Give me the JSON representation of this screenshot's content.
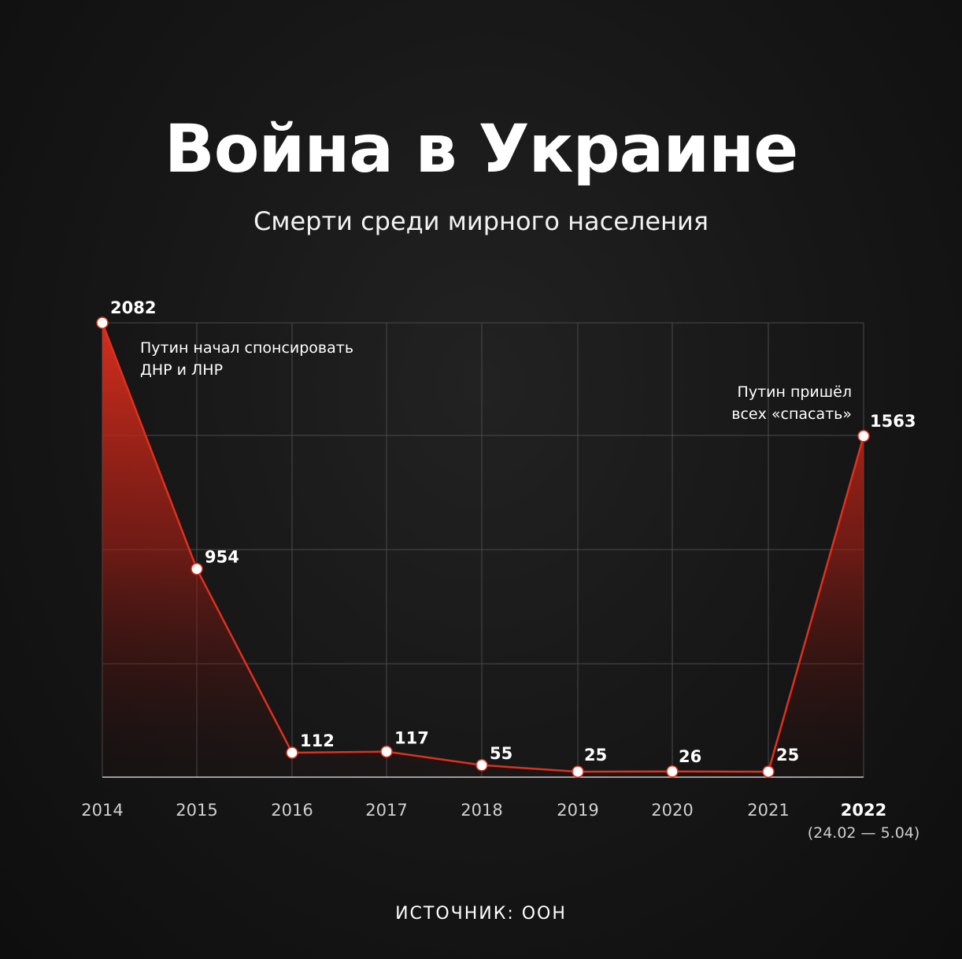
{
  "header": {
    "title": "Война в Украине",
    "subtitle": "Смерти среди мирного населения"
  },
  "footer": {
    "source": "ИСТОЧНИК: ООН"
  },
  "colors": {
    "accent": "#e0301e",
    "grid": "#4a4a4a",
    "text": "#ffffff"
  },
  "chart_data": {
    "type": "area",
    "title": "",
    "xlabel": "",
    "ylabel": "",
    "x": [
      "2014",
      "2015",
      "2016",
      "2017",
      "2018",
      "2019",
      "2020",
      "2021",
      "2022"
    ],
    "x_sublabels": [
      "",
      "",
      "",
      "",
      "",
      "",
      "",
      "",
      "(24.02 — 5.04)"
    ],
    "values": [
      2082,
      954,
      112,
      117,
      55,
      25,
      26,
      25,
      1563
    ],
    "ylim": [
      0,
      2000
    ],
    "grid": true,
    "annotations": [
      {
        "x": "2014",
        "lines": [
          "Путин начал спонсировать",
          "ДНР и ЛНР"
        ]
      },
      {
        "x": "2022",
        "lines": [
          "Путин пришёл",
          "всех «спасать»"
        ]
      }
    ]
  }
}
